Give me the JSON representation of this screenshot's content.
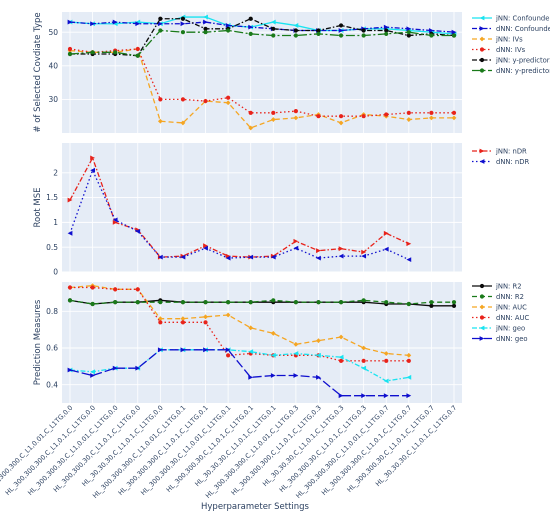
{
  "x_axis_title": "Hyperparameter Settings",
  "categories": [
    "HL_300,300,300,C_L1,0.01,C_L1TG,0.0",
    "HL_300,300,300,C_L1,0.1,C_L1TG,0.0",
    "HL_300,300,30,C_L1,0.01,C_L1TG,0.0",
    "HL_300,300,30,C_L1,0.1,C_L1TG,0.0",
    "HL_30,30,30,C_L1,0.1,C_L1TG,0.0",
    "HL_300,300,300,C_L1,0.01,C_L1TG,0.1",
    "HL_300,300,300,C_L1,0.1,C_L1TG,0.1",
    "HL_300,300,30,C_L1,0.01,C_L1TG,0.1",
    "HL_300,300,30,C_L1,0.1,C_L1TG,0.1",
    "HL_30,30,30,C_L1,0.1,C_L1TG,0.1",
    "HL_300,300,300,C_L1,0.01,C_L1TG,0.3",
    "HL_300,300,300,C_L1,0.1,C_L1TG,0.3",
    "HL_30,30,30,C_L1,0.1,C_L1TG,0.3",
    "HL_300,300,30,C_L1,0.1,C_L1TG,0.3",
    "HL_300,300,300,C_L1,0.01,C_L1TG,0.7",
    "HL_300,300,300,C_L1,0.1,C_L1TG,0.7",
    "HL_300,300,30,C_L1,0.1,C_L1TG,0.7",
    "HL_30,30,30,C_L1,0.1,C_L1TG,0.7"
  ],
  "chart_data": [
    {
      "type": "line",
      "ylabel": "# of Selected Covdiate Type",
      "ylim": [
        20,
        56
      ],
      "yticks": [
        30,
        40,
        50
      ],
      "legend_position": "right",
      "series": [
        {
          "name": "jNN: Confounders",
          "color": "#19e3f0",
          "dash": "solid",
          "marker": "triangle-left",
          "values": [
            53,
            52.5,
            52.5,
            53,
            52.5,
            54.5,
            54.5,
            52,
            51.5,
            53,
            52,
            50.5,
            50.5,
            51,
            51,
            50.5,
            50,
            49.5
          ]
        },
        {
          "name": "dNN: Confounders",
          "color": "#0f0fce",
          "dash": "dashdot",
          "marker": "triangle-right",
          "values": [
            53,
            52.5,
            53,
            52.5,
            52.5,
            52.5,
            53,
            52,
            51.5,
            51,
            50.5,
            50.5,
            50.5,
            51,
            51.5,
            51,
            50.5,
            50
          ]
        },
        {
          "name": "jNN: IVs",
          "color": "#f5a623",
          "dash": "dash",
          "marker": "diamond",
          "values": [
            44.5,
            44,
            44,
            45,
            23.5,
            23,
            29.5,
            29,
            21.5,
            24,
            24.5,
            25.5,
            23,
            25.5,
            25,
            24,
            24.5,
            24.5
          ]
        },
        {
          "name": "dNN: IVs",
          "color": "#e8231b",
          "dash": "dot",
          "marker": "circle",
          "values": [
            45,
            44,
            44.5,
            45,
            30,
            30,
            29.5,
            30.5,
            26,
            26,
            26.5,
            25,
            25,
            25,
            25.5,
            26,
            26,
            26
          ]
        },
        {
          "name": "jNN: y-predictors",
          "color": "#0a0a0a",
          "dash": "dashdot",
          "marker": "circle",
          "values": [
            43.5,
            43.5,
            43.5,
            43,
            54,
            54,
            51,
            51,
            54,
            51,
            50.5,
            50.5,
            52,
            50.5,
            50.5,
            49,
            49.5,
            49
          ]
        },
        {
          "name": "dNN: y-predictors",
          "color": "#1a7a1a",
          "dash": "longdashdot",
          "marker": "circle",
          "values": [
            43.5,
            44,
            44,
            43,
            50.5,
            50,
            50,
            50.5,
            49.5,
            49,
            49,
            49.5,
            49,
            49,
            49.5,
            50,
            49,
            49
          ]
        }
      ]
    },
    {
      "type": "line",
      "ylabel": "Root MSE",
      "ylim": [
        0,
        2.6
      ],
      "yticks": [
        0,
        0.5,
        1,
        1.5,
        2
      ],
      "legend_position": "right",
      "series": [
        {
          "name": "jNN: nDR",
          "color": "#e8231b",
          "dash": "dashdot",
          "marker": "triangle-right",
          "values": [
            1.45,
            2.3,
            1.0,
            0.85,
            0.3,
            0.32,
            0.53,
            0.32,
            0.3,
            0.32,
            0.62,
            0.43,
            0.47,
            0.4,
            0.78,
            0.57
          ],
          "x_index": [
            0,
            1,
            2,
            3,
            4,
            5,
            6,
            7,
            8,
            9,
            10,
            11,
            12,
            13,
            14,
            15
          ]
        },
        {
          "name": "dNN: nDR",
          "color": "#0f0fce",
          "dash": "dot",
          "marker": "triangle-left",
          "values": [
            0.78,
            2.05,
            1.05,
            0.82,
            0.3,
            0.3,
            0.48,
            0.28,
            0.3,
            0.3,
            0.48,
            0.28,
            0.32,
            0.32,
            0.46,
            0.25
          ],
          "x_index": [
            0,
            1,
            2,
            3,
            4,
            5,
            6,
            7,
            8,
            9,
            10,
            11,
            12,
            13,
            14,
            15
          ]
        }
      ]
    },
    {
      "type": "line",
      "ylabel": "Prediction Measures",
      "ylim": [
        0.3,
        0.96
      ],
      "yticks": [
        0.4,
        0.6,
        0.8
      ],
      "legend_position": "right",
      "series": [
        {
          "name": "jNN: R2",
          "color": "#0a0a0a",
          "dash": "solid",
          "marker": "circle",
          "values": [
            0.86,
            0.84,
            0.85,
            0.85,
            0.86,
            0.85,
            0.85,
            0.85,
            0.85,
            0.85,
            0.85,
            0.85,
            0.85,
            0.85,
            0.84,
            0.84,
            0.83,
            0.83
          ]
        },
        {
          "name": "dNN: R2",
          "color": "#1a7a1a",
          "dash": "dash",
          "marker": "circle",
          "values": [
            0.86,
            0.84,
            0.85,
            0.85,
            0.85,
            0.85,
            0.85,
            0.85,
            0.85,
            0.86,
            0.85,
            0.85,
            0.85,
            0.86,
            0.85,
            0.84,
            0.85,
            0.85
          ]
        },
        {
          "name": "jNN: AUC",
          "color": "#f5a623",
          "dash": "dash",
          "marker": "diamond",
          "values": [
            0.93,
            0.94,
            0.92,
            0.92,
            0.76,
            0.76,
            0.77,
            0.78,
            0.71,
            0.68,
            0.62,
            0.64,
            0.66,
            0.6,
            0.57,
            0.56
          ]
        },
        {
          "name": "dNN: AUC",
          "color": "#e8231b",
          "dash": "dot",
          "marker": "circle",
          "values": [
            0.93,
            0.93,
            0.92,
            0.92,
            0.74,
            0.74,
            0.74,
            0.56,
            0.57,
            0.56,
            0.56,
            0.56,
            0.53,
            0.53,
            0.53,
            0.53
          ]
        },
        {
          "name": "jNN: geo",
          "color": "#19e3f0",
          "dash": "dashdot",
          "marker": "triangle-left",
          "values": [
            0.48,
            0.47,
            0.49,
            0.49,
            0.59,
            0.59,
            0.59,
            0.59,
            0.58,
            0.56,
            0.57,
            0.56,
            0.55,
            0.49,
            0.42,
            0.44
          ]
        },
        {
          "name": "dNN: geo",
          "color": "#0f0fce",
          "dash": "longdash",
          "marker": "triangle-right",
          "values": [
            0.48,
            0.45,
            0.49,
            0.49,
            0.59,
            0.59,
            0.59,
            0.59,
            0.44,
            0.45,
            0.45,
            0.44,
            0.34,
            0.34,
            0.34,
            0.34
          ]
        }
      ]
    }
  ]
}
